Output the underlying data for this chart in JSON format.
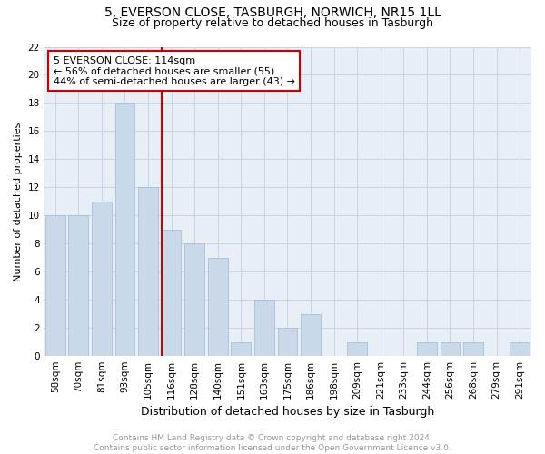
{
  "title": "5, EVERSON CLOSE, TASBURGH, NORWICH, NR15 1LL",
  "subtitle": "Size of property relative to detached houses in Tasburgh",
  "xlabel": "Distribution of detached houses by size in Tasburgh",
  "ylabel": "Number of detached properties",
  "categories": [
    "58sqm",
    "70sqm",
    "81sqm",
    "93sqm",
    "105sqm",
    "116sqm",
    "128sqm",
    "140sqm",
    "151sqm",
    "163sqm",
    "175sqm",
    "186sqm",
    "198sqm",
    "209sqm",
    "221sqm",
    "233sqm",
    "244sqm",
    "256sqm",
    "268sqm",
    "279sqm",
    "291sqm"
  ],
  "values": [
    10,
    10,
    11,
    18,
    12,
    9,
    8,
    7,
    1,
    4,
    2,
    3,
    0,
    1,
    0,
    0,
    1,
    1,
    1,
    0,
    1
  ],
  "bar_color": "#c9d9ea",
  "bar_edge_color": "#a8c0d8",
  "vline_color": "#cc0000",
  "annotation_line1": "5 EVERSON CLOSE: 114sqm",
  "annotation_line2": "← 56% of detached houses are smaller (55)",
  "annotation_line3": "44% of semi-detached houses are larger (43) →",
  "annotation_box_color": "#ffffff",
  "annotation_box_edge": "#cc0000",
  "ylim": [
    0,
    22
  ],
  "yticks": [
    0,
    2,
    4,
    6,
    8,
    10,
    12,
    14,
    16,
    18,
    20,
    22
  ],
  "grid_color": "#c8d4e4",
  "footer_text": "Contains HM Land Registry data © Crown copyright and database right 2024.\nContains public sector information licensed under the Open Government Licence v3.0.",
  "title_fontsize": 10,
  "subtitle_fontsize": 9,
  "xlabel_fontsize": 9,
  "ylabel_fontsize": 8,
  "tick_fontsize": 7.5,
  "annotation_fontsize": 8,
  "footer_fontsize": 6.5
}
